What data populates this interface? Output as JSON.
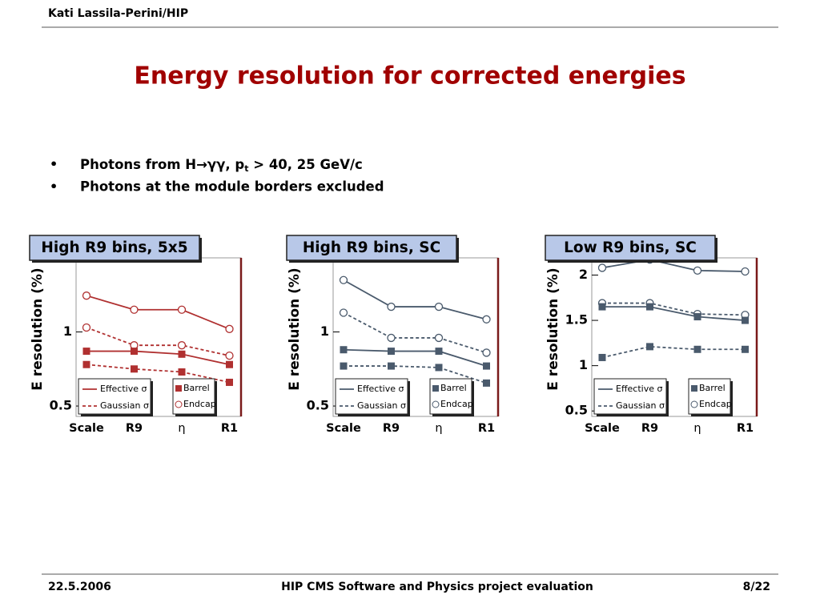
{
  "header": {
    "author": "Kati Lassila-Perini/HIP"
  },
  "title": "Energy resolution for corrected energies",
  "bullets": [
    {
      "text": "Photons from H→γγ, p",
      "sub": "t",
      "rest": " > 40, 25 GeV/c"
    },
    {
      "text": "Photons at the module borders excluded"
    }
  ],
  "footer": {
    "date": "22.5.2006",
    "event": "HIP CMS Software and Physics project evaluation",
    "page": "8/22"
  },
  "chart_data": [
    {
      "type": "line",
      "title": "High R9 bins, 5x5",
      "y_label": "E resolution (%)",
      "categories": [
        "Scale",
        "R9",
        "η",
        "R1"
      ],
      "ylim": [
        0.43,
        1.5
      ],
      "yticks": [
        0.5,
        1
      ],
      "legend": {
        "lines": [
          "Effective σ",
          "Gaussian σ"
        ],
        "markers": [
          "Barrel",
          "Endcap"
        ]
      },
      "series": [
        {
          "color": "#b03030",
          "marker": "circle",
          "dashed": false,
          "values": [
            1.245,
            1.15,
            1.15,
            1.02
          ]
        },
        {
          "color": "#b03030",
          "marker": "circle",
          "dashed": true,
          "values": [
            1.03,
            0.91,
            0.91,
            0.84
          ]
        },
        {
          "color": "#b03030",
          "marker": "square",
          "dashed": false,
          "values": [
            0.87,
            0.87,
            0.85,
            0.78
          ]
        },
        {
          "color": "#b03030",
          "marker": "square",
          "dashed": true,
          "values": [
            0.78,
            0.75,
            0.73,
            0.66
          ]
        }
      ]
    },
    {
      "type": "line",
      "title": "High R9 bins, SC",
      "y_label": "E resolution (%)",
      "categories": [
        "Scale",
        "R9",
        "η",
        "R1"
      ],
      "ylim": [
        0.43,
        1.5
      ],
      "yticks": [
        0.5,
        1
      ],
      "legend": {
        "lines": [
          "Effective σ",
          "Gaussian σ"
        ],
        "markers": [
          "Barrel",
          "Endcap"
        ]
      },
      "series": [
        {
          "color": "#4a5a6c",
          "marker": "circle",
          "dashed": false,
          "values": [
            1.35,
            1.17,
            1.17,
            1.085
          ]
        },
        {
          "color": "#4a5a6c",
          "marker": "circle",
          "dashed": true,
          "values": [
            1.13,
            0.96,
            0.96,
            0.86
          ]
        },
        {
          "color": "#4a5a6c",
          "marker": "square",
          "dashed": false,
          "values": [
            0.88,
            0.87,
            0.87,
            0.77
          ]
        },
        {
          "color": "#4a5a6c",
          "marker": "square",
          "dashed": true,
          "values": [
            0.77,
            0.77,
            0.76,
            0.655
          ]
        }
      ]
    },
    {
      "type": "line",
      "title": "Low R9 bins, SC",
      "y_label": "E resolution (%)",
      "categories": [
        "Scale",
        "R9",
        "η",
        "R1"
      ],
      "ylim": [
        0.44,
        2.19
      ],
      "yticks": [
        0.5,
        1,
        1.5,
        2
      ],
      "legend": {
        "lines": [
          "Effective σ",
          "Gaussian σ"
        ],
        "markers": [
          "Barrel",
          "Endcap"
        ]
      },
      "series": [
        {
          "color": "#4a5a6c",
          "marker": "circle",
          "dashed": false,
          "values": [
            2.08,
            2.17,
            2.05,
            2.04
          ]
        },
        {
          "color": "#4a5a6c",
          "marker": "circle",
          "dashed": true,
          "values": [
            1.69,
            1.69,
            1.57,
            1.56
          ]
        },
        {
          "color": "#4a5a6c",
          "marker": "square",
          "dashed": false,
          "values": [
            1.65,
            1.65,
            1.54,
            1.5
          ]
        },
        {
          "color": "#4a5a6c",
          "marker": "square",
          "dashed": true,
          "values": [
            1.09,
            1.21,
            1.18,
            1.18
          ]
        }
      ]
    }
  ]
}
